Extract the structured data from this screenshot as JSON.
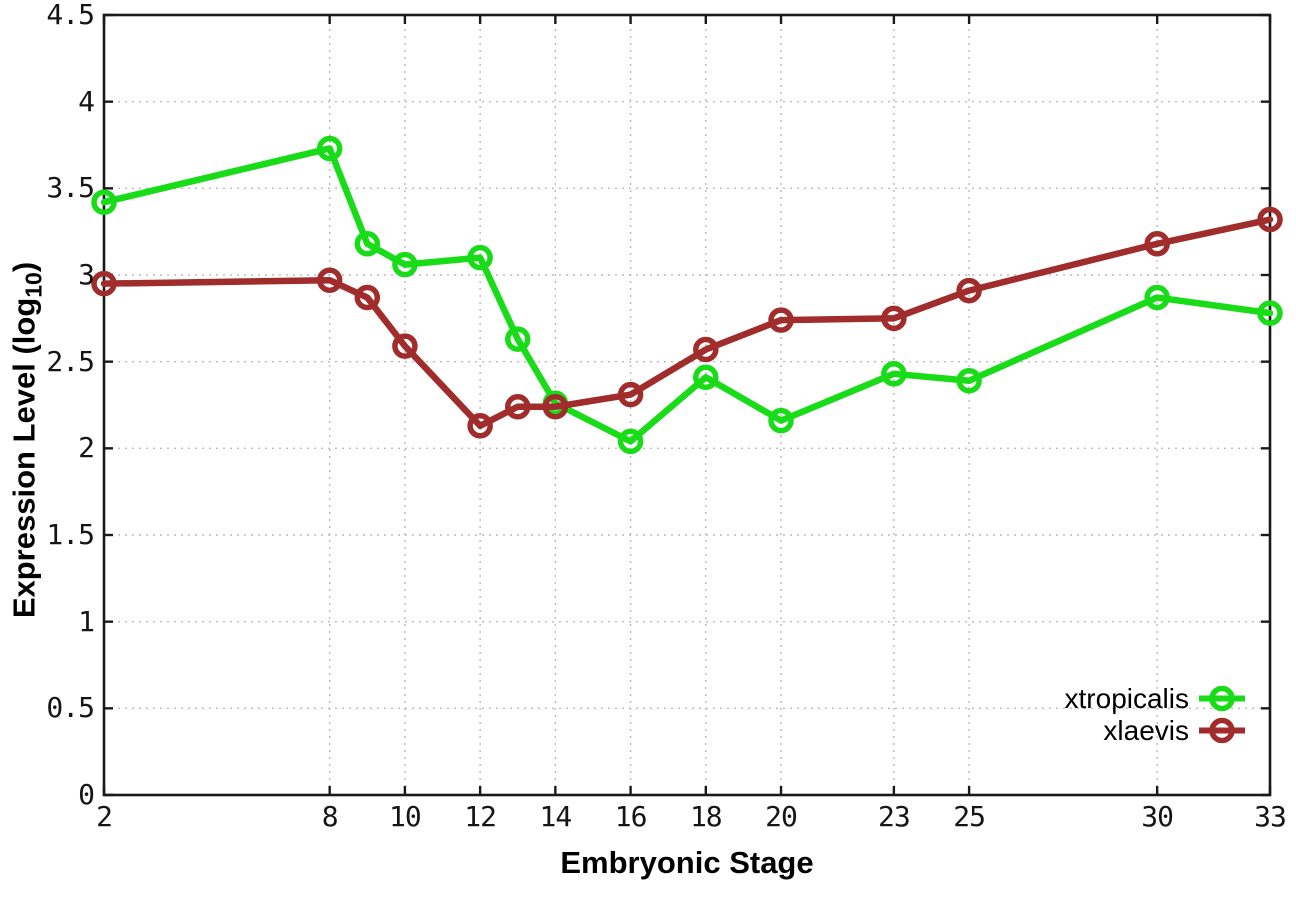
{
  "chart_data": {
    "type": "line",
    "title": "",
    "xlabel": "Embryonic Stage",
    "ylabel": "Expression Level (log10)",
    "ylabel_parts": {
      "main": "Expression Level (log",
      "sub": "10",
      "close": ")"
    },
    "x": [
      2,
      8,
      9,
      10,
      12,
      13,
      14,
      16,
      18,
      20,
      23,
      25,
      30,
      33
    ],
    "series": [
      {
        "name": "xtropicalis",
        "color": "#17DC17",
        "marker": "open-circle",
        "values": [
          3.42,
          3.73,
          3.18,
          3.06,
          3.1,
          2.63,
          2.26,
          2.04,
          2.41,
          2.16,
          2.43,
          2.39,
          2.87,
          2.78
        ]
      },
      {
        "name": "xlaevis",
        "color": "#A02C2C",
        "marker": "open-circle",
        "values": [
          2.95,
          2.97,
          2.87,
          2.59,
          2.13,
          2.24,
          2.24,
          2.31,
          2.57,
          2.74,
          2.75,
          2.91,
          3.18,
          3.32
        ]
      }
    ],
    "x_ticks": [
      2,
      8,
      10,
      12,
      14,
      16,
      18,
      20,
      23,
      25,
      30,
      33
    ],
    "y_ticks": [
      0,
      0.5,
      1,
      1.5,
      2,
      2.5,
      3,
      3.5,
      4,
      4.5
    ],
    "xlim": [
      2,
      33
    ],
    "ylim": [
      0,
      4.5
    ],
    "grid": true,
    "grid_style": "dotted",
    "grid_color": "#BBBBBB",
    "border_color": "#1A1A1A",
    "background": "#FFFFFF",
    "legend_position": "bottom-right"
  }
}
